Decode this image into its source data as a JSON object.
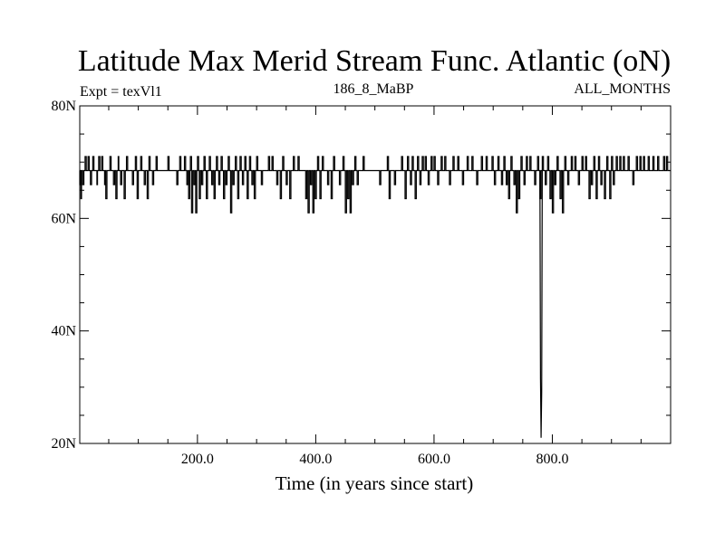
{
  "chart_data": {
    "type": "line",
    "title": "Latitude Max Merid Stream Func. Atlantic (oN)",
    "subtitle_left": "Expt = texVl1",
    "subtitle_center": "186_8_MaBP",
    "subtitle_right": "ALL_MONTHS",
    "xlabel": "Time (in years since start)",
    "ylabel": "",
    "xlim": [
      1,
      1000
    ],
    "ylim": [
      20,
      80
    ],
    "x_ticks": [
      {
        "value": 200,
        "label": "200.0"
      },
      {
        "value": 400,
        "label": "400.0"
      },
      {
        "value": 600,
        "label": "600.0"
      },
      {
        "value": 800,
        "label": "800.0"
      }
    ],
    "y_ticks": [
      {
        "value": 20,
        "label": "20N"
      },
      {
        "value": 40,
        "label": "40N"
      },
      {
        "value": 60,
        "label": "60N"
      },
      {
        "value": 80,
        "label": "80N"
      }
    ],
    "baseline": 68.5,
    "levels": [
      61,
      63.5,
      66,
      68.5,
      71
    ],
    "events": [
      [
        1,
        2,
        66
      ],
      [
        3,
        4,
        63.5
      ],
      [
        6,
        8,
        66
      ],
      [
        10,
        12,
        71
      ],
      [
        15,
        17,
        71
      ],
      [
        19,
        21,
        66
      ],
      [
        23,
        25,
        71
      ],
      [
        30,
        31,
        66
      ],
      [
        33,
        35,
        71
      ],
      [
        38,
        40,
        71
      ],
      [
        43,
        44,
        66
      ],
      [
        45,
        47,
        63.5
      ],
      [
        52,
        54,
        71
      ],
      [
        58,
        60,
        66
      ],
      [
        62,
        64,
        63.5
      ],
      [
        66,
        67,
        71
      ],
      [
        70,
        72,
        66
      ],
      [
        76,
        78,
        63.5
      ],
      [
        80,
        82,
        71
      ],
      [
        90,
        92,
        66
      ],
      [
        95,
        97,
        71
      ],
      [
        98,
        100,
        63.5
      ],
      [
        104,
        106,
        71
      ],
      [
        110,
        112,
        66
      ],
      [
        115,
        117,
        63.5
      ],
      [
        118,
        120,
        71
      ],
      [
        124,
        126,
        66
      ],
      [
        130,
        132,
        71
      ],
      [
        150,
        152,
        71
      ],
      [
        165,
        167,
        66
      ],
      [
        170,
        172,
        71
      ],
      [
        178,
        180,
        71
      ],
      [
        182,
        184,
        66
      ],
      [
        185,
        187,
        63.5
      ],
      [
        188,
        190,
        71
      ],
      [
        190,
        192,
        61
      ],
      [
        194,
        196,
        66
      ],
      [
        197,
        199,
        61
      ],
      [
        200,
        202,
        71
      ],
      [
        203,
        205,
        63.5
      ],
      [
        207,
        209,
        66
      ],
      [
        211,
        213,
        71
      ],
      [
        215,
        217,
        63.5
      ],
      [
        220,
        222,
        71
      ],
      [
        224,
        226,
        66
      ],
      [
        228,
        230,
        63.5
      ],
      [
        232,
        234,
        71
      ],
      [
        236,
        238,
        66
      ],
      [
        240,
        242,
        71
      ],
      [
        244,
        246,
        63.5
      ],
      [
        248,
        250,
        66
      ],
      [
        252,
        254,
        71
      ],
      [
        256,
        258,
        61
      ],
      [
        260,
        262,
        66
      ],
      [
        264,
        266,
        71
      ],
      [
        268,
        270,
        63.5
      ],
      [
        272,
        274,
        71
      ],
      [
        276,
        278,
        66
      ],
      [
        280,
        282,
        71
      ],
      [
        284,
        286,
        63.5
      ],
      [
        288,
        290,
        71
      ],
      [
        292,
        294,
        66
      ],
      [
        296,
        298,
        63.5
      ],
      [
        300,
        302,
        71
      ],
      [
        308,
        310,
        66
      ],
      [
        320,
        322,
        71
      ],
      [
        326,
        328,
        71
      ],
      [
        334,
        336,
        66
      ],
      [
        340,
        342,
        63.5
      ],
      [
        344,
        346,
        71
      ],
      [
        350,
        352,
        66
      ],
      [
        356,
        358,
        63.5
      ],
      [
        362,
        364,
        71
      ],
      [
        370,
        372,
        71
      ],
      [
        383,
        385,
        63.5
      ],
      [
        387,
        389,
        61
      ],
      [
        391,
        393,
        66
      ],
      [
        395,
        397,
        61
      ],
      [
        399,
        401,
        63.5
      ],
      [
        403,
        405,
        71
      ],
      [
        407,
        409,
        63.5
      ],
      [
        411,
        413,
        71
      ],
      [
        420,
        422,
        66
      ],
      [
        426,
        428,
        63.5
      ],
      [
        430,
        432,
        71
      ],
      [
        440,
        442,
        66
      ],
      [
        446,
        448,
        71
      ],
      [
        450,
        452,
        61
      ],
      [
        454,
        456,
        63.5
      ],
      [
        458,
        460,
        61
      ],
      [
        462,
        464,
        66
      ],
      [
        466,
        468,
        71
      ],
      [
        470,
        472,
        66
      ],
      [
        480,
        482,
        71
      ],
      [
        508,
        510,
        66
      ],
      [
        521,
        523,
        71
      ],
      [
        524,
        526,
        63.5
      ],
      [
        533,
        535,
        66
      ],
      [
        545,
        547,
        71
      ],
      [
        551,
        553,
        63.5
      ],
      [
        555,
        557,
        71
      ],
      [
        560,
        562,
        66
      ],
      [
        563,
        565,
        71
      ],
      [
        568,
        570,
        63.5
      ],
      [
        572,
        574,
        71
      ],
      [
        576,
        578,
        66
      ],
      [
        580,
        582,
        71
      ],
      [
        585,
        587,
        71
      ],
      [
        590,
        592,
        66
      ],
      [
        595,
        597,
        71
      ],
      [
        600,
        602,
        71
      ],
      [
        606,
        608,
        66
      ],
      [
        612,
        614,
        71
      ],
      [
        618,
        620,
        71
      ],
      [
        626,
        628,
        66
      ],
      [
        632,
        634,
        71
      ],
      [
        640,
        642,
        71
      ],
      [
        648,
        650,
        66
      ],
      [
        656,
        658,
        71
      ],
      [
        664,
        666,
        71
      ],
      [
        672,
        674,
        66
      ],
      [
        680,
        682,
        71
      ],
      [
        688,
        690,
        71
      ],
      [
        698,
        700,
        71
      ],
      [
        702,
        704,
        66
      ],
      [
        708,
        710,
        71
      ],
      [
        714,
        716,
        66
      ],
      [
        718,
        720,
        71
      ],
      [
        722,
        724,
        66
      ],
      [
        726,
        728,
        63.5
      ],
      [
        730,
        732,
        71
      ],
      [
        735,
        737,
        66
      ],
      [
        739,
        741,
        61
      ],
      [
        743,
        745,
        63.5
      ],
      [
        747,
        749,
        71
      ],
      [
        752,
        754,
        66
      ],
      [
        756,
        758,
        71
      ],
      [
        762,
        764,
        71
      ],
      [
        770,
        772,
        66
      ],
      [
        775,
        777,
        71
      ],
      [
        779,
        781,
        63.5
      ],
      [
        783,
        785,
        71
      ],
      [
        788,
        790,
        66
      ],
      [
        792,
        794,
        71
      ],
      [
        796,
        798,
        63.5
      ],
      [
        800,
        802,
        61
      ],
      [
        804,
        806,
        66
      ],
      [
        808,
        810,
        71
      ],
      [
        813,
        815,
        63.5
      ],
      [
        817,
        819,
        61
      ],
      [
        821,
        823,
        71
      ],
      [
        826,
        828,
        66
      ],
      [
        832,
        834,
        71
      ],
      [
        838,
        840,
        71
      ],
      [
        844,
        846,
        66
      ],
      [
        850,
        852,
        71
      ],
      [
        856,
        858,
        71
      ],
      [
        862,
        864,
        63.5
      ],
      [
        866,
        868,
        66
      ],
      [
        870,
        872,
        71
      ],
      [
        874,
        876,
        63.5
      ],
      [
        878,
        880,
        71
      ],
      [
        882,
        884,
        66
      ],
      [
        888,
        890,
        63.5
      ],
      [
        892,
        894,
        71
      ],
      [
        897,
        899,
        63.5
      ],
      [
        900,
        902,
        71
      ],
      [
        903,
        905,
        66
      ],
      [
        908,
        910,
        71
      ],
      [
        914,
        916,
        71
      ],
      [
        920,
        922,
        71
      ],
      [
        928,
        930,
        71
      ],
      [
        936,
        938,
        66
      ],
      [
        942,
        944,
        71
      ],
      [
        948,
        950,
        71
      ],
      [
        954,
        956,
        71
      ],
      [
        962,
        964,
        71
      ],
      [
        970,
        972,
        71
      ],
      [
        978,
        980,
        71
      ],
      [
        988,
        990,
        71
      ],
      [
        993,
        995,
        71
      ]
    ],
    "spike": {
      "x": [
        779,
        780,
        781,
        782,
        783
      ],
      "y": [
        68.5,
        31.5,
        21,
        29,
        68.5
      ]
    }
  }
}
